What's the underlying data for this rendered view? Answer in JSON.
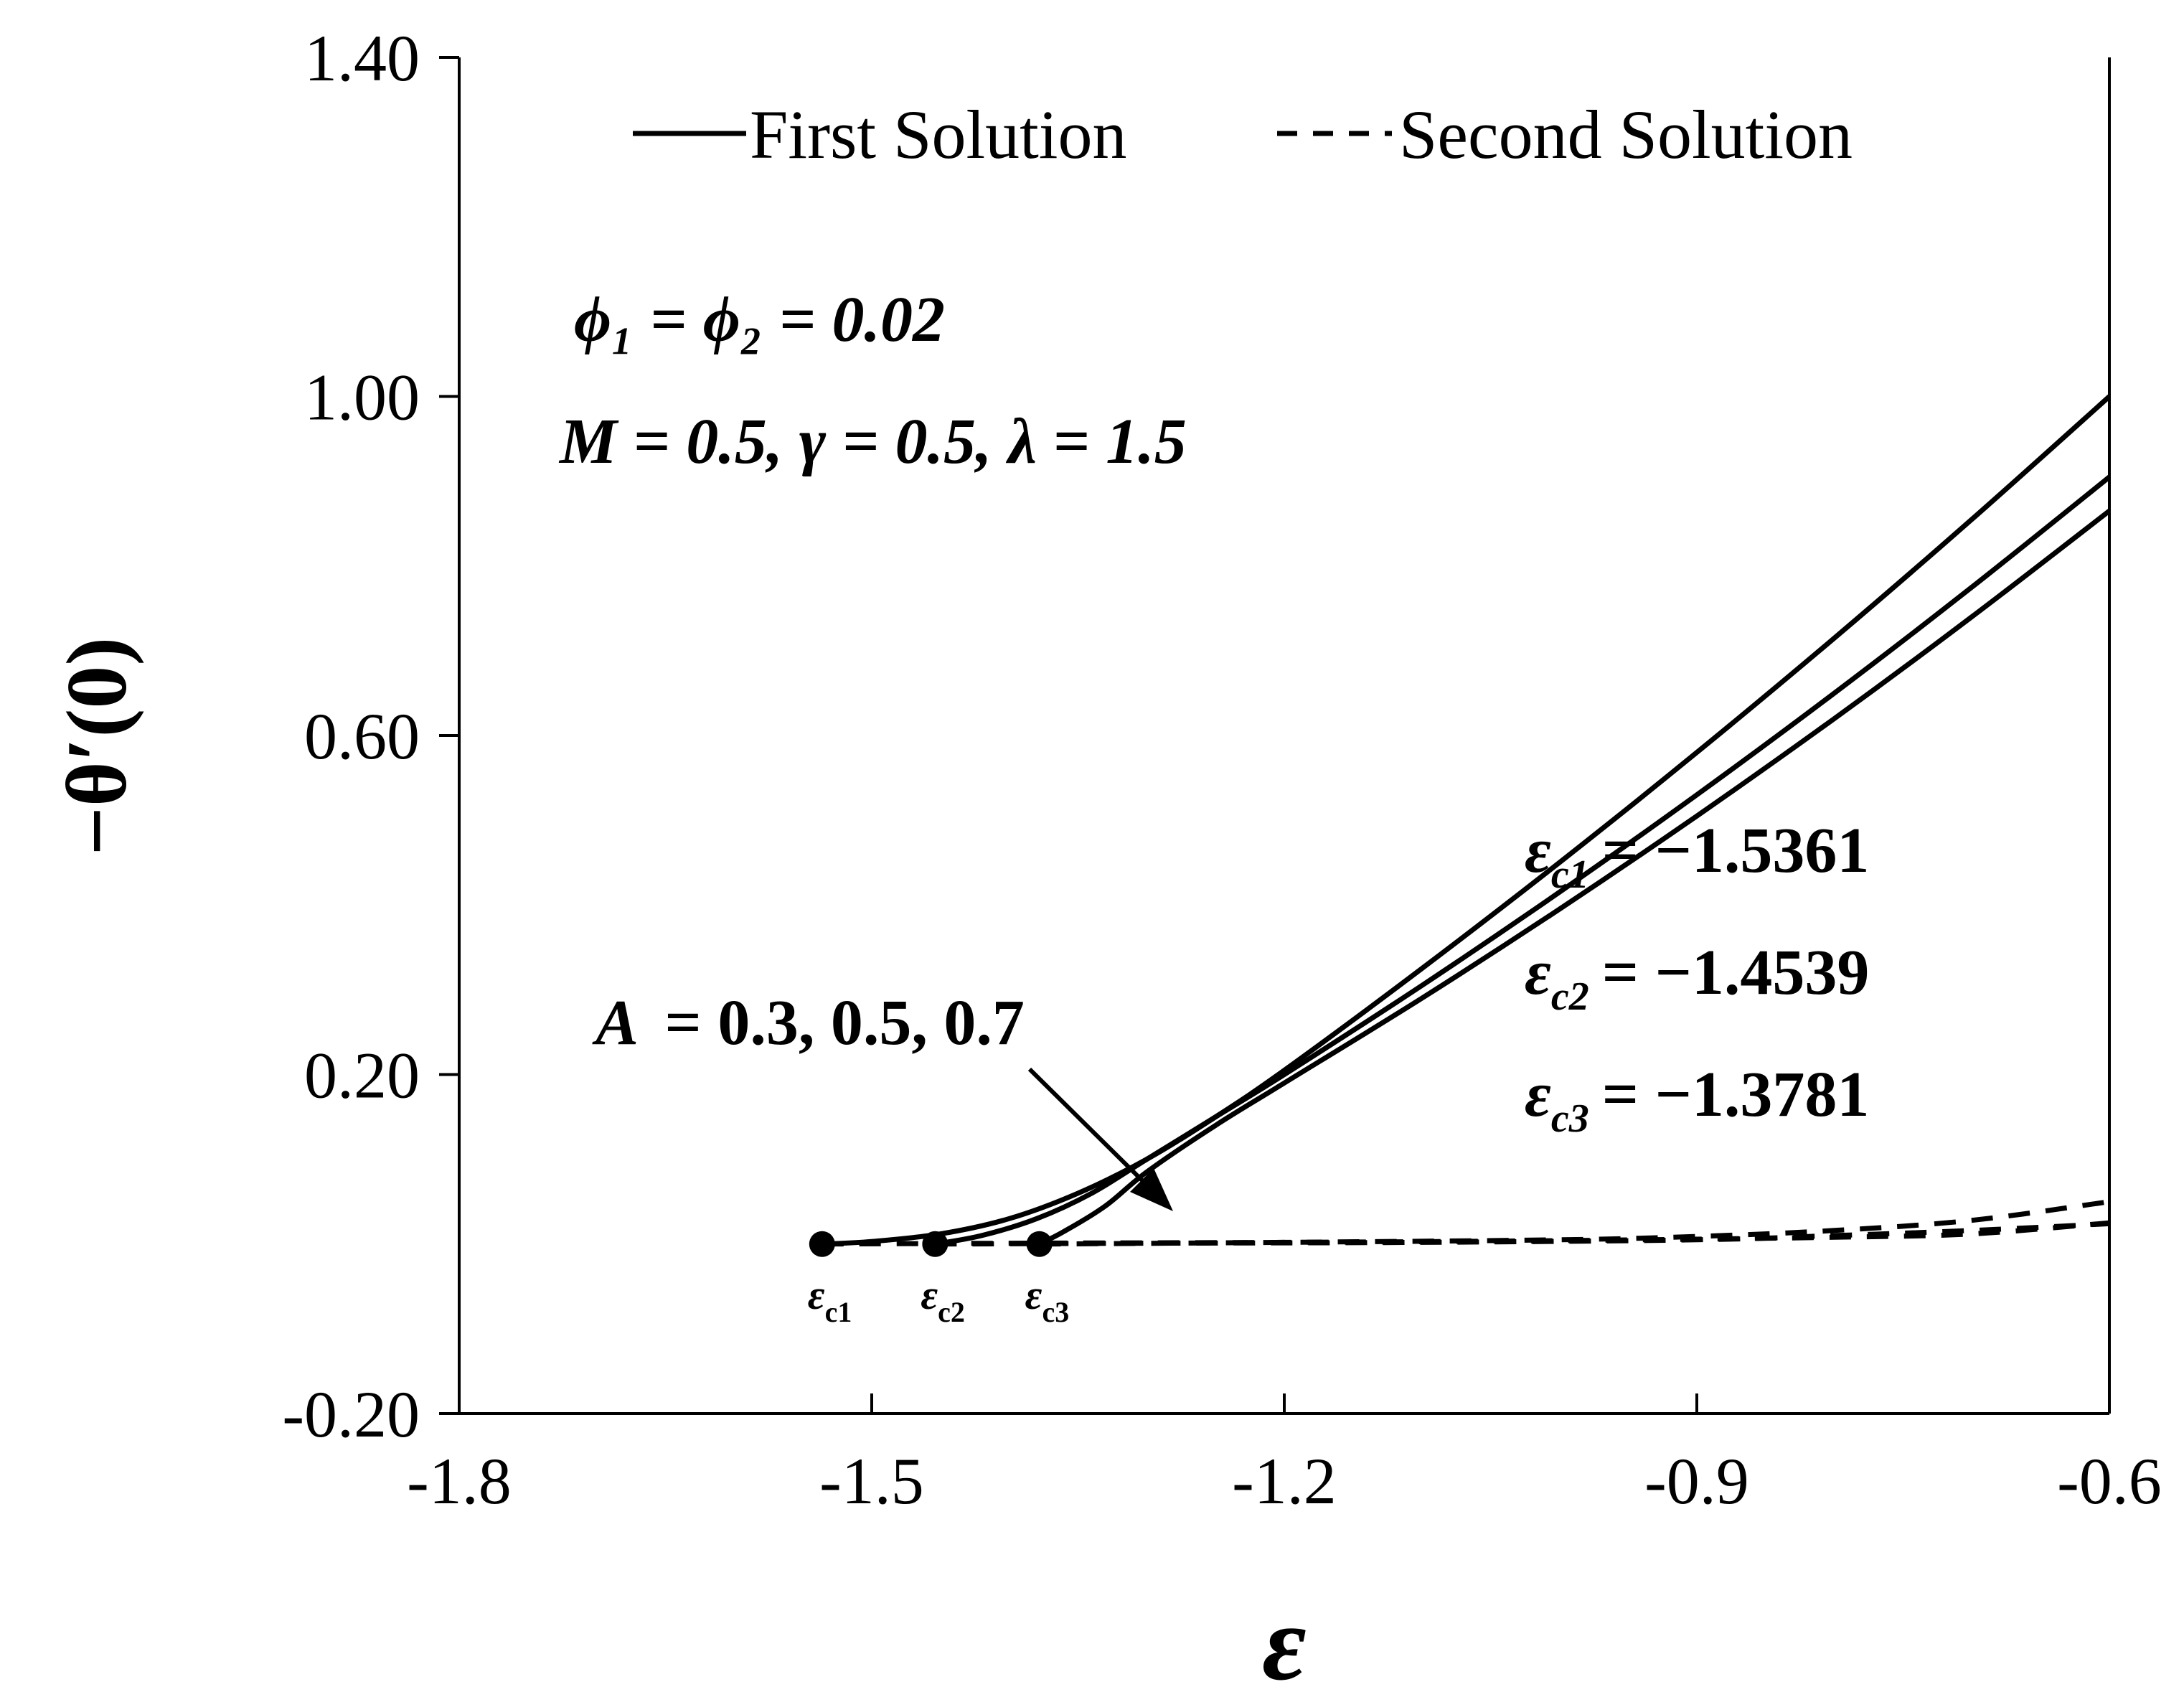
{
  "chart_data": {
    "type": "line",
    "xlabel": "ε",
    "ylabel": "−θ′(0)",
    "xlim": [
      -1.8,
      -0.6
    ],
    "ylim": [
      -0.2,
      1.4
    ],
    "x_ticks": [
      "-1.8",
      "-1.5",
      "-1.2",
      "-0.9",
      "-0.6"
    ],
    "y_ticks": [
      "-0.20",
      "0.20",
      "0.60",
      "1.00",
      "1.40"
    ],
    "legend": {
      "position": "top",
      "first": "First Solution",
      "second": "Second Solution"
    },
    "annotations": {
      "phi": "ϕ₁ = ϕ₂ = 0.02",
      "params": "M = 0.5, γ = 0.5, λ = 1.5",
      "A_label": "A",
      "A_values": "= 0.3, 0.5, 0.7",
      "critical_values": [
        {
          "sym": "ε",
          "sub": "c1",
          "value": "= −1.5361"
        },
        {
          "sym": "ε",
          "sub": "c2",
          "value": "= −1.4539"
        },
        {
          "sym": "ε",
          "sub": "c3",
          "value": "= −1.3781"
        }
      ],
      "point_labels": [
        {
          "sym": "ε",
          "sub": "c1"
        },
        {
          "sym": "ε",
          "sub": "c2"
        },
        {
          "sym": "ε",
          "sub": "c3"
        }
      ]
    },
    "critical_points": [
      {
        "x": -1.5361,
        "y": 0.0
      },
      {
        "x": -1.4539,
        "y": 0.0
      },
      {
        "x": -1.3781,
        "y": 0.0
      }
    ],
    "series": [
      {
        "solution": "first",
        "A": "0.3",
        "x": [
          -1.5361,
          -1.5,
          -1.45,
          -1.4,
          -1.35,
          -1.3,
          -1.25,
          -1.2,
          -1.1,
          -1.0,
          -0.9,
          -0.8,
          -0.7,
          -0.6
        ],
        "y": [
          0.0,
          0.003,
          0.012,
          0.03,
          0.06,
          0.1,
          0.15,
          0.205,
          0.325,
          0.45,
          0.58,
          0.715,
          0.855,
          1.0
        ]
      },
      {
        "solution": "first",
        "A": "0.5",
        "x": [
          -1.4539,
          -1.42,
          -1.38,
          -1.34,
          -1.3,
          -1.25,
          -1.2,
          -1.1,
          -1.0,
          -0.9,
          -0.8,
          -0.7,
          -0.6
        ],
        "y": [
          0.0,
          0.01,
          0.03,
          0.06,
          0.1,
          0.15,
          0.2,
          0.305,
          0.415,
          0.53,
          0.65,
          0.775,
          0.905
        ]
      },
      {
        "solution": "first",
        "A": "0.7",
        "x": [
          -1.3781,
          -1.36,
          -1.33,
          -1.3,
          -1.25,
          -1.2,
          -1.1,
          -1.0,
          -0.9,
          -0.8,
          -0.7,
          -0.6
        ],
        "y": [
          0.0,
          0.015,
          0.045,
          0.085,
          0.14,
          0.19,
          0.29,
          0.395,
          0.505,
          0.62,
          0.74,
          0.865
        ]
      },
      {
        "solution": "second",
        "A": "0.3",
        "x": [
          -1.5361,
          -1.4,
          -1.2,
          -1.0,
          -0.8,
          -0.7,
          -0.6
        ],
        "y": [
          0.0,
          0.001,
          0.002,
          0.004,
          0.008,
          0.012,
          0.025
        ]
      },
      {
        "solution": "second",
        "A": "0.5",
        "x": [
          -1.4539,
          -1.3,
          -1.1,
          -0.9,
          -0.8,
          -0.7,
          -0.6
        ],
        "y": [
          0.0,
          0.001,
          0.002,
          0.005,
          0.01,
          0.016,
          0.024
        ]
      },
      {
        "solution": "second",
        "A": "0.7",
        "x": [
          -1.3781,
          -1.2,
          -1.0,
          -0.9,
          -0.8,
          -0.7,
          -0.6
        ],
        "y": [
          0.0,
          0.002,
          0.005,
          0.009,
          0.016,
          0.028,
          0.05
        ]
      }
    ]
  }
}
